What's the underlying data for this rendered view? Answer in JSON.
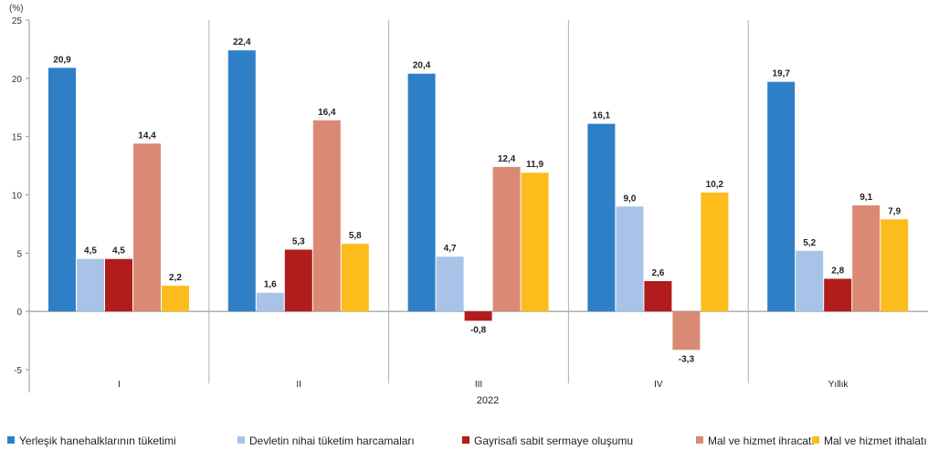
{
  "chart_data": {
    "type": "bar",
    "y_unit_label": "(%)",
    "categories": [
      "I",
      "II",
      "III",
      "IV",
      "Yıllık"
    ],
    "x_group_label": "2022",
    "ylim": [
      -5,
      25
    ],
    "yticks": [
      -5,
      0,
      5,
      10,
      15,
      20,
      25
    ],
    "grid": false,
    "legend_position": "bottom",
    "series": [
      {
        "name": "Yerleşik hanehalklarının tüketimi",
        "color": "#2f7fc6",
        "values": [
          20.9,
          22.4,
          20.4,
          16.1,
          19.7
        ],
        "labels": [
          "20,9",
          "22,4",
          "20,4",
          "16,1",
          "19,7"
        ]
      },
      {
        "name": "Devletin nihai tüketim harcamaları",
        "color": "#a9c3e8",
        "values": [
          4.5,
          1.6,
          4.7,
          9.0,
          5.2
        ],
        "labels": [
          "4,5",
          "1,6",
          "4,7",
          "9,0",
          "5,2"
        ]
      },
      {
        "name": "Gayrisafi sabit sermaye oluşumu",
        "color": "#b11c1c",
        "values": [
          4.5,
          5.3,
          -0.8,
          2.6,
          2.8
        ],
        "labels": [
          "4,5",
          "5,3",
          "-0,8",
          "2,6",
          "2,8"
        ]
      },
      {
        "name": "Mal ve hizmet ihracatı",
        "color": "#da8a74",
        "values": [
          14.4,
          16.4,
          12.4,
          -3.3,
          9.1
        ],
        "labels": [
          "14,4",
          "16,4",
          "12,4",
          "-3,3",
          "9,1"
        ]
      },
      {
        "name": "Mal ve hizmet ithalatı",
        "color": "#fbbc1c",
        "values": [
          2.2,
          5.8,
          11.9,
          10.2,
          7.9
        ],
        "labels": [
          "2,2",
          "5,8",
          "11,9",
          "10,2",
          "7,9"
        ]
      }
    ]
  }
}
